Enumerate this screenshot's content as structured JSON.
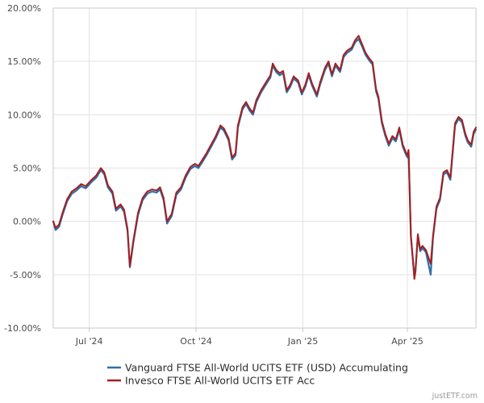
{
  "chart_data": {
    "type": "line",
    "x_axis": {
      "start": "2024-05-31",
      "end": "2025-05-30",
      "ticks": [
        {
          "date": "2024-07-01",
          "label": "Jul '24"
        },
        {
          "date": "2024-10-01",
          "label": "Oct '24"
        },
        {
          "date": "2025-01-01",
          "label": "Jan '25"
        },
        {
          "date": "2025-04-01",
          "label": "Apr '25"
        }
      ]
    },
    "y_axis": {
      "min": -10,
      "max": 20,
      "ticks": [
        20,
        15,
        10,
        5,
        0,
        -5,
        -10
      ],
      "tick_labels": [
        "20.00%",
        "15.00%",
        "10.00%",
        "5.00%",
        "0.00%",
        "-5.00%",
        "-10.00%"
      ]
    },
    "grid": true,
    "legend_position": "bottom-center",
    "series": [
      {
        "name": "Vanguard FTSE All-World UCITS ETF (USD) Accumulating",
        "color": "#2f6fa8",
        "points": [
          [
            "2024-05-31",
            0.0
          ],
          [
            "2024-06-02",
            -0.8
          ],
          [
            "2024-06-05",
            -0.5
          ],
          [
            "2024-06-08",
            0.6
          ],
          [
            "2024-06-12",
            1.9
          ],
          [
            "2024-06-16",
            2.6
          ],
          [
            "2024-06-20",
            2.9
          ],
          [
            "2024-06-24",
            3.3
          ],
          [
            "2024-06-28",
            3.1
          ],
          [
            "2024-07-03",
            3.7
          ],
          [
            "2024-07-07",
            4.1
          ],
          [
            "2024-07-11",
            4.8
          ],
          [
            "2024-07-14",
            4.4
          ],
          [
            "2024-07-17",
            3.2
          ],
          [
            "2024-07-21",
            2.6
          ],
          [
            "2024-07-24",
            1.0
          ],
          [
            "2024-07-28",
            1.4
          ],
          [
            "2024-07-31",
            0.9
          ],
          [
            "2024-08-03",
            -0.9
          ],
          [
            "2024-08-05",
            -4.3
          ],
          [
            "2024-08-08",
            -2.0
          ],
          [
            "2024-08-12",
            0.6
          ],
          [
            "2024-08-16",
            2.0
          ],
          [
            "2024-08-20",
            2.6
          ],
          [
            "2024-08-24",
            2.8
          ],
          [
            "2024-08-28",
            2.7
          ],
          [
            "2024-08-31",
            3.0
          ],
          [
            "2024-09-03",
            2.0
          ],
          [
            "2024-09-06",
            -0.2
          ],
          [
            "2024-09-10",
            0.5
          ],
          [
            "2024-09-14",
            2.5
          ],
          [
            "2024-09-18",
            3.0
          ],
          [
            "2024-09-22",
            4.1
          ],
          [
            "2024-09-26",
            4.9
          ],
          [
            "2024-09-30",
            5.2
          ],
          [
            "2024-10-03",
            5.0
          ],
          [
            "2024-10-06",
            5.5
          ],
          [
            "2024-10-10",
            6.2
          ],
          [
            "2024-10-14",
            7.0
          ],
          [
            "2024-10-18",
            7.8
          ],
          [
            "2024-10-22",
            8.8
          ],
          [
            "2024-10-25",
            8.5
          ],
          [
            "2024-10-29",
            7.6
          ],
          [
            "2024-11-01",
            5.8
          ],
          [
            "2024-11-04",
            6.2
          ],
          [
            "2024-11-06",
            8.8
          ],
          [
            "2024-11-10",
            10.5
          ],
          [
            "2024-11-13",
            11.0
          ],
          [
            "2024-11-16",
            10.4
          ],
          [
            "2024-11-19",
            10.0
          ],
          [
            "2024-11-22",
            11.2
          ],
          [
            "2024-11-26",
            12.1
          ],
          [
            "2024-11-30",
            12.8
          ],
          [
            "2024-12-04",
            13.5
          ],
          [
            "2024-12-06",
            14.6
          ],
          [
            "2024-12-09",
            14.0
          ],
          [
            "2024-12-12",
            13.7
          ],
          [
            "2024-12-15",
            13.9
          ],
          [
            "2024-12-18",
            12.1
          ],
          [
            "2024-12-21",
            12.6
          ],
          [
            "2024-12-24",
            13.4
          ],
          [
            "2024-12-28",
            13.0
          ],
          [
            "2024-12-31",
            11.9
          ],
          [
            "2025-01-03",
            12.6
          ],
          [
            "2025-01-06",
            13.7
          ],
          [
            "2025-01-09",
            12.7
          ],
          [
            "2025-01-13",
            11.7
          ],
          [
            "2025-01-16",
            12.9
          ],
          [
            "2025-01-20",
            14.2
          ],
          [
            "2025-01-23",
            14.8
          ],
          [
            "2025-01-26",
            13.6
          ],
          [
            "2025-01-29",
            14.6
          ],
          [
            "2025-02-02",
            14.0
          ],
          [
            "2025-02-05",
            15.4
          ],
          [
            "2025-02-08",
            15.8
          ],
          [
            "2025-02-12",
            16.1
          ],
          [
            "2025-02-15",
            16.8
          ],
          [
            "2025-02-18",
            17.1
          ],
          [
            "2025-02-21",
            16.4
          ],
          [
            "2025-02-24",
            15.6
          ],
          [
            "2025-02-27",
            15.1
          ],
          [
            "2025-03-02",
            14.7
          ],
          [
            "2025-03-05",
            12.2
          ],
          [
            "2025-03-07",
            11.5
          ],
          [
            "2025-03-10",
            9.2
          ],
          [
            "2025-03-13",
            8.0
          ],
          [
            "2025-03-16",
            7.1
          ],
          [
            "2025-03-19",
            7.8
          ],
          [
            "2025-03-22",
            7.5
          ],
          [
            "2025-03-25",
            8.6
          ],
          [
            "2025-03-28",
            7.0
          ],
          [
            "2025-03-31",
            6.2
          ],
          [
            "2025-04-01",
            6.0
          ],
          [
            "2025-04-02",
            6.5
          ],
          [
            "2025-04-04",
            -1.5
          ],
          [
            "2025-04-07",
            -5.2
          ],
          [
            "2025-04-08",
            -4.5
          ],
          [
            "2025-04-10",
            -1.4
          ],
          [
            "2025-04-12",
            -2.8
          ],
          [
            "2025-04-14",
            -2.5
          ],
          [
            "2025-04-17",
            -2.9
          ],
          [
            "2025-04-21",
            -5.0
          ],
          [
            "2025-04-23",
            -1.6
          ],
          [
            "2025-04-26",
            1.2
          ],
          [
            "2025-04-29",
            2.0
          ],
          [
            "2025-05-02",
            4.4
          ],
          [
            "2025-05-05",
            4.6
          ],
          [
            "2025-05-08",
            3.9
          ],
          [
            "2025-05-12",
            9.0
          ],
          [
            "2025-05-15",
            9.6
          ],
          [
            "2025-05-18",
            9.3
          ],
          [
            "2025-05-21",
            8.0
          ],
          [
            "2025-05-23",
            7.4
          ],
          [
            "2025-05-26",
            7.0
          ],
          [
            "2025-05-28",
            8.2
          ],
          [
            "2025-05-30",
            8.6
          ]
        ]
      },
      {
        "name": "Invesco FTSE All-World UCITS ETF Acc",
        "color": "#a51f1f",
        "points": [
          [
            "2024-05-31",
            0.0
          ],
          [
            "2024-06-02",
            -0.6
          ],
          [
            "2024-06-05",
            -0.3
          ],
          [
            "2024-06-08",
            0.8
          ],
          [
            "2024-06-12",
            2.1
          ],
          [
            "2024-06-16",
            2.8
          ],
          [
            "2024-06-20",
            3.1
          ],
          [
            "2024-06-24",
            3.5
          ],
          [
            "2024-06-28",
            3.3
          ],
          [
            "2024-07-03",
            3.9
          ],
          [
            "2024-07-07",
            4.3
          ],
          [
            "2024-07-11",
            5.0
          ],
          [
            "2024-07-14",
            4.6
          ],
          [
            "2024-07-17",
            3.4
          ],
          [
            "2024-07-21",
            2.8
          ],
          [
            "2024-07-24",
            1.2
          ],
          [
            "2024-07-28",
            1.6
          ],
          [
            "2024-07-31",
            1.1
          ],
          [
            "2024-08-03",
            -0.7
          ],
          [
            "2024-08-05",
            -4.2
          ],
          [
            "2024-08-08",
            -1.8
          ],
          [
            "2024-08-12",
            0.8
          ],
          [
            "2024-08-16",
            2.2
          ],
          [
            "2024-08-20",
            2.8
          ],
          [
            "2024-08-24",
            3.0
          ],
          [
            "2024-08-28",
            2.9
          ],
          [
            "2024-08-31",
            3.2
          ],
          [
            "2024-09-03",
            2.2
          ],
          [
            "2024-09-06",
            0.0
          ],
          [
            "2024-09-10",
            0.7
          ],
          [
            "2024-09-14",
            2.7
          ],
          [
            "2024-09-18",
            3.2
          ],
          [
            "2024-09-22",
            4.3
          ],
          [
            "2024-09-26",
            5.1
          ],
          [
            "2024-09-30",
            5.4
          ],
          [
            "2024-10-03",
            5.2
          ],
          [
            "2024-10-06",
            5.7
          ],
          [
            "2024-10-10",
            6.4
          ],
          [
            "2024-10-14",
            7.2
          ],
          [
            "2024-10-18",
            8.0
          ],
          [
            "2024-10-22",
            9.0
          ],
          [
            "2024-10-25",
            8.7
          ],
          [
            "2024-10-29",
            7.8
          ],
          [
            "2024-11-01",
            6.0
          ],
          [
            "2024-11-04",
            6.4
          ],
          [
            "2024-11-06",
            9.0
          ],
          [
            "2024-11-10",
            10.7
          ],
          [
            "2024-11-13",
            11.2
          ],
          [
            "2024-11-16",
            10.6
          ],
          [
            "2024-11-19",
            10.2
          ],
          [
            "2024-11-22",
            11.4
          ],
          [
            "2024-11-26",
            12.3
          ],
          [
            "2024-11-30",
            13.0
          ],
          [
            "2024-12-04",
            13.7
          ],
          [
            "2024-12-06",
            14.8
          ],
          [
            "2024-12-09",
            14.2
          ],
          [
            "2024-12-12",
            13.9
          ],
          [
            "2024-12-15",
            14.1
          ],
          [
            "2024-12-18",
            12.3
          ],
          [
            "2024-12-21",
            12.8
          ],
          [
            "2024-12-24",
            13.6
          ],
          [
            "2024-12-28",
            13.2
          ],
          [
            "2024-12-31",
            12.1
          ],
          [
            "2025-01-03",
            12.8
          ],
          [
            "2025-01-06",
            13.9
          ],
          [
            "2025-01-09",
            12.9
          ],
          [
            "2025-01-13",
            11.9
          ],
          [
            "2025-01-16",
            13.1
          ],
          [
            "2025-01-20",
            14.4
          ],
          [
            "2025-01-23",
            15.0
          ],
          [
            "2025-01-26",
            13.8
          ],
          [
            "2025-01-29",
            14.8
          ],
          [
            "2025-02-02",
            14.2
          ],
          [
            "2025-02-05",
            15.6
          ],
          [
            "2025-02-08",
            16.0
          ],
          [
            "2025-02-12",
            16.3
          ],
          [
            "2025-02-15",
            17.0
          ],
          [
            "2025-02-18",
            17.4
          ],
          [
            "2025-02-21",
            16.6
          ],
          [
            "2025-02-24",
            15.8
          ],
          [
            "2025-02-27",
            15.3
          ],
          [
            "2025-03-02",
            14.9
          ],
          [
            "2025-03-05",
            12.4
          ],
          [
            "2025-03-07",
            11.7
          ],
          [
            "2025-03-10",
            9.4
          ],
          [
            "2025-03-13",
            8.2
          ],
          [
            "2025-03-16",
            7.3
          ],
          [
            "2025-03-19",
            8.0
          ],
          [
            "2025-03-22",
            7.7
          ],
          [
            "2025-03-25",
            8.8
          ],
          [
            "2025-03-28",
            7.2
          ],
          [
            "2025-03-31",
            6.4
          ],
          [
            "2025-04-01",
            6.2
          ],
          [
            "2025-04-02",
            6.7
          ],
          [
            "2025-04-04",
            -1.3
          ],
          [
            "2025-04-07",
            -5.4
          ],
          [
            "2025-04-08",
            -4.7
          ],
          [
            "2025-04-10",
            -1.2
          ],
          [
            "2025-04-12",
            -2.6
          ],
          [
            "2025-04-14",
            -2.3
          ],
          [
            "2025-04-17",
            -2.7
          ],
          [
            "2025-04-21",
            -4.0
          ],
          [
            "2025-04-23",
            -1.4
          ],
          [
            "2025-04-26",
            1.4
          ],
          [
            "2025-04-29",
            2.2
          ],
          [
            "2025-05-02",
            4.6
          ],
          [
            "2025-05-05",
            4.8
          ],
          [
            "2025-05-08",
            4.1
          ],
          [
            "2025-05-12",
            9.2
          ],
          [
            "2025-05-15",
            9.8
          ],
          [
            "2025-05-18",
            9.5
          ],
          [
            "2025-05-21",
            8.2
          ],
          [
            "2025-05-23",
            7.6
          ],
          [
            "2025-05-26",
            7.2
          ],
          [
            "2025-05-28",
            8.4
          ],
          [
            "2025-05-30",
            8.8
          ]
        ]
      }
    ]
  },
  "credit": "justETF.com"
}
